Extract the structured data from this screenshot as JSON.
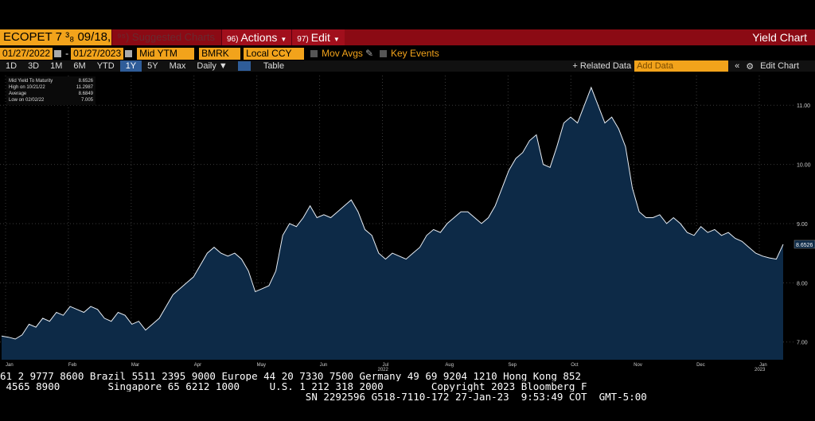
{
  "titlebar": {
    "security": "ECOPET 7 ³₈ 09/18,",
    "suggested": "⁹⁵) Suggested Charts",
    "actions_num": "96)",
    "actions": "Actions",
    "edit_num": "97)",
    "edit": "Edit",
    "app_title": "Yield Chart"
  },
  "controls": {
    "start_date": "01/27/2022",
    "end_date": "01/27/2023",
    "field": "Mid YTM",
    "source": "BMRK",
    "currency": "Local CCY",
    "mov_avgs": "Mov Avgs",
    "key_events": "Key Events"
  },
  "periods": [
    "1D",
    "3D",
    "1M",
    "6M",
    "YTD",
    "1Y",
    "5Y",
    "Max"
  ],
  "active_period": "1Y",
  "frequency": "Daily ▼",
  "table_label": "Table",
  "related_label": "+ Related Data",
  "add_data_placeholder": "Add Data",
  "edit_chart_label": "Edit Chart",
  "legend": {
    "rows": [
      {
        "label": "Mid Yield To Maturity",
        "value": "8.6526"
      },
      {
        "label": "High on 10/21/22",
        "value": "11.2987"
      },
      {
        "label": "Average",
        "value": "8.6849"
      },
      {
        "label": "Low on 02/02/22",
        "value": "7.005"
      }
    ]
  },
  "chart_data": {
    "type": "area",
    "ylim": [
      6.7,
      11.5
    ],
    "y_ticks": [
      7.0,
      8.0,
      9.0,
      10.0,
      11.0
    ],
    "y_tick_labels": [
      "7.00",
      "8.00",
      "9.00",
      "10.00",
      "11.00"
    ],
    "x_tick_labels": [
      "Jan",
      "Feb",
      "Mar",
      "Apr",
      "May",
      "Jun",
      "Jul",
      "Aug",
      "Sep",
      "Oct",
      "Nov",
      "Dec",
      "Jan"
    ],
    "year_labels": [
      {
        "after": "Jul",
        "text": "2022"
      },
      {
        "after": "Jan",
        "text": "2023"
      }
    ],
    "last_value_label": "8.6526",
    "grid": true,
    "series": [
      {
        "values": [
          7.1,
          7.08,
          7.05,
          7.12,
          7.3,
          7.25,
          7.4,
          7.35,
          7.5,
          7.45,
          7.6,
          7.55,
          7.5,
          7.6,
          7.55,
          7.4,
          7.35,
          7.5,
          7.45,
          7.3,
          7.35,
          7.2,
          7.3,
          7.4,
          7.6,
          7.8,
          7.9,
          8.0,
          8.1,
          8.3,
          8.5,
          8.6,
          8.5,
          8.45,
          8.5,
          8.4,
          8.2,
          7.85,
          7.9,
          7.95,
          8.2,
          8.8,
          9.0,
          8.95,
          9.1,
          9.3,
          9.1,
          9.15,
          9.1,
          9.2,
          9.3,
          9.4,
          9.2,
          8.9,
          8.8,
          8.5,
          8.4,
          8.5,
          8.45,
          8.4,
          8.5,
          8.6,
          8.8,
          8.9,
          8.85,
          9.0,
          9.1,
          9.2,
          9.2,
          9.1,
          9.0,
          9.1,
          9.3,
          9.6,
          9.9,
          10.1,
          10.2,
          10.4,
          10.5,
          10.0,
          9.95,
          10.3,
          10.7,
          10.8,
          10.7,
          11.0,
          11.3,
          11.0,
          10.7,
          10.8,
          10.6,
          10.3,
          9.6,
          9.2,
          9.1,
          9.1,
          9.15,
          9.0,
          9.1,
          9.0,
          8.85,
          8.8,
          8.95,
          8.85,
          8.9,
          8.8,
          8.85,
          8.75,
          8.7,
          8.6,
          8.5,
          8.45,
          8.42,
          8.4,
          8.65
        ]
      }
    ]
  },
  "footer": {
    "line1": "61 2 9777 8600 Brazil 5511 2395 9000 Europe 44 20 7330 7500 Germany 49 69 9204 1210 Hong Kong 852",
    "line2": " 4565 8900        Singapore 65 6212 1000     U.S. 1 212 318 2000        Copyright 2023 Bloomberg F",
    "line3": "                                                   SN 2292596 G518-7110-172 27-Jan-23  9:53:49 COT  GMT-5:00"
  }
}
